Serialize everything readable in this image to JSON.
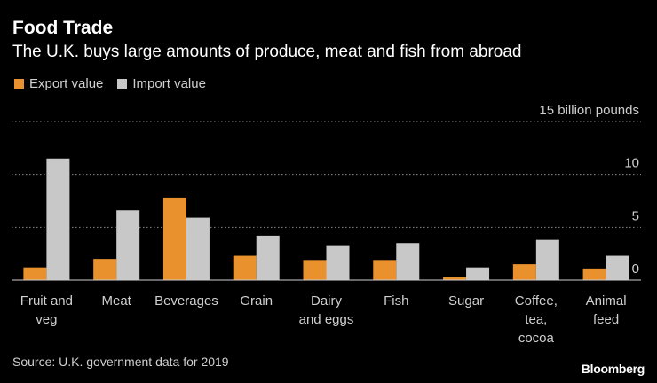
{
  "chart_data": {
    "type": "bar",
    "title": "Food Trade",
    "subtitle": "The U.K. buys large amounts of produce, meat and fish from abroad",
    "categories": [
      [
        "Fruit and",
        "veg"
      ],
      [
        "Meat"
      ],
      [
        "Beverages"
      ],
      [
        "Grain"
      ],
      [
        "Dairy",
        "and eggs"
      ],
      [
        "Fish"
      ],
      [
        "Sugar"
      ],
      [
        "Coffee,",
        "tea,",
        "cocoa"
      ],
      [
        "Animal",
        "feed"
      ]
    ],
    "series": [
      {
        "name": "Export value",
        "color": "#e8912d",
        "values": [
          1.2,
          2.0,
          7.8,
          2.3,
          1.9,
          1.9,
          0.3,
          1.5,
          1.1
        ]
      },
      {
        "name": "Import value",
        "color": "#c8c8c8",
        "values": [
          11.5,
          6.6,
          5.9,
          4.2,
          3.3,
          3.5,
          1.2,
          3.8,
          2.3
        ]
      }
    ],
    "ylim": [
      0,
      15
    ],
    "yticks": [
      0,
      5,
      10,
      15
    ],
    "ytick_labels": [
      "0",
      "5",
      "10",
      "15 billion pounds"
    ],
    "grid": true,
    "legend": "top-left"
  },
  "source": "Source: U.K. government data for 2019",
  "brand": "Bloomberg"
}
